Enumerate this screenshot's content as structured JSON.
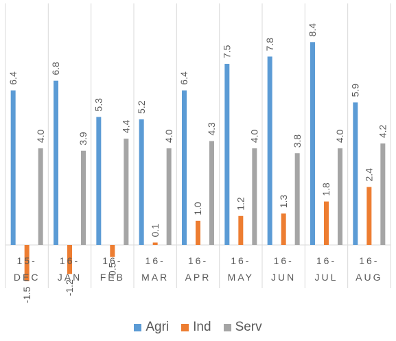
{
  "chart_data": {
    "type": "bar",
    "categories": [
      [
        "15-",
        "DEC"
      ],
      [
        "16-",
        "JAN"
      ],
      [
        "16-",
        "FEB"
      ],
      [
        "16-",
        "MAR"
      ],
      [
        "16-",
        "APR"
      ],
      [
        "16-",
        "MAY"
      ],
      [
        "16-",
        "JUN"
      ],
      [
        "16-",
        "JUL"
      ],
      [
        "16-",
        "AUG"
      ]
    ],
    "series": [
      {
        "name": "Agri",
        "color": "#5B9BD5",
        "values": [
          6.4,
          6.8,
          5.3,
          5.2,
          6.4,
          7.5,
          7.8,
          8.4,
          5.9
        ],
        "labels": [
          "6.4",
          "6.8",
          "5.3",
          "5.2",
          "6.4",
          "7.5",
          "7.8",
          "8.4",
          "5.9"
        ]
      },
      {
        "name": "Ind",
        "color": "#ED7D31",
        "values": [
          -1.5,
          -1.2,
          -0.5,
          0.1,
          1.0,
          1.2,
          1.3,
          1.8,
          2.4
        ],
        "labels": [
          "-1.5",
          "-1.2",
          "-0.5",
          "0.1",
          "1.0",
          "1.2",
          "1.3",
          "1.8",
          "2.4"
        ]
      },
      {
        "name": "Serv",
        "color": "#A5A5A5",
        "values": [
          4.0,
          3.9,
          4.4,
          4.0,
          4.3,
          4.0,
          3.8,
          4.0,
          4.2
        ],
        "labels": [
          "4.0",
          "3.9",
          "4.4",
          "4.0",
          "4.3",
          "4.0",
          "3.8",
          "4.0",
          "4.2"
        ]
      }
    ],
    "ylim": [
      -2.2,
      9.7
    ],
    "grid": "vertical category separators",
    "legend": "bottom"
  }
}
